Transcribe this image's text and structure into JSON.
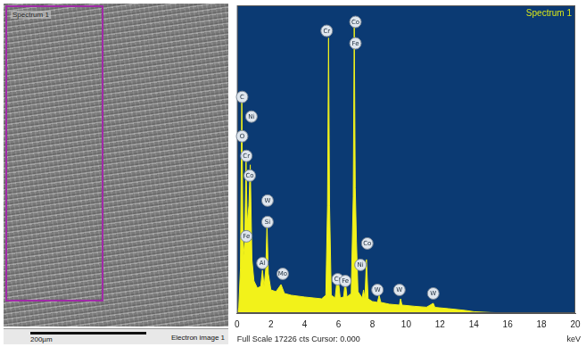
{
  "image": {
    "region_label": "Spectrum 1",
    "scale_bar": "200µm",
    "caption": "Electron image 1"
  },
  "chart_data": {
    "type": "line",
    "title": "Spectrum 1",
    "x_label": "keV",
    "footer": "Full Scale 17226 cts Cursor: 0.000",
    "color": "#f2f21a",
    "grid": false,
    "tick_labels": "x",
    "xlim": [
      0,
      20
    ],
    "xticks": [
      0,
      2,
      4,
      6,
      8,
      10,
      12,
      14,
      16,
      18,
      20
    ],
    "ylim": [
      0,
      17226
    ],
    "x": [
      0,
      0.1,
      0.2,
      0.28,
      0.36,
      0.45,
      0.53,
      0.6,
      0.7,
      0.78,
      0.88,
      1.0,
      1.2,
      1.4,
      1.5,
      1.6,
      1.7,
      1.77,
      1.85,
      2.0,
      2.3,
      2.6,
      2.8,
      3.2,
      3.6,
      4.0,
      4.5,
      5.0,
      5.25,
      5.35,
      5.41,
      5.47,
      5.57,
      5.8,
      5.95,
      6.1,
      6.3,
      6.4,
      6.5,
      6.75,
      6.87,
      6.93,
      6.99,
      7.06,
      7.15,
      7.4,
      7.48,
      7.56,
      7.65,
      7.75,
      8.0,
      8.3,
      8.4,
      8.5,
      9.0,
      9.6,
      9.67,
      9.75,
      10.5,
      11.2,
      11.6,
      11.7,
      12.5,
      13.5,
      14.0,
      15.0,
      16.0,
      18.0,
      20.0
    ],
    "values": [
      0,
      300,
      2500,
      12000,
      3000,
      4000,
      8500,
      5000,
      6000,
      8300,
      3000,
      1800,
      1400,
      1500,
      2400,
      1500,
      2500,
      5000,
      2200,
      1300,
      1200,
      1600,
      1100,
      1000,
      950,
      900,
      850,
      800,
      1000,
      6000,
      15400,
      6000,
      1000,
      850,
      2200,
      850,
      900,
      1800,
      900,
      1100,
      6500,
      16000,
      7000,
      4000,
      1200,
      850,
      1300,
      800,
      3000,
      800,
      650,
      600,
      1000,
      600,
      500,
      450,
      800,
      450,
      380,
      330,
      550,
      320,
      250,
      150,
      80,
      30,
      10,
      0,
      0
    ],
    "annotations": [
      {
        "x": 0.3,
        "y": 12100,
        "label": "C"
      },
      {
        "x": 0.85,
        "y": 11000,
        "label": "Ni"
      },
      {
        "x": 0.3,
        "y": 9900,
        "label": "O"
      },
      {
        "x": 0.55,
        "y": 8800,
        "label": "Cr"
      },
      {
        "x": 0.75,
        "y": 7700,
        "label": "Co"
      },
      {
        "x": 0.55,
        "y": 4300,
        "label": "Fe"
      },
      {
        "x": 1.8,
        "y": 6300,
        "label": "W"
      },
      {
        "x": 1.8,
        "y": 5100,
        "label": "Si"
      },
      {
        "x": 1.5,
        "y": 2800,
        "label": "Al"
      },
      {
        "x": 2.7,
        "y": 2200,
        "label": "Mo"
      },
      {
        "x": 5.3,
        "y": 15800,
        "label": "Cr"
      },
      {
        "x": 7.0,
        "y": 16300,
        "label": "Co"
      },
      {
        "x": 7.0,
        "y": 15100,
        "label": "Fe"
      },
      {
        "x": 7.7,
        "y": 3900,
        "label": "Co"
      },
      {
        "x": 7.3,
        "y": 2700,
        "label": "Ni"
      },
      {
        "x": 5.95,
        "y": 1900,
        "label": "Cr"
      },
      {
        "x": 6.4,
        "y": 1800,
        "label": "Fe"
      },
      {
        "x": 8.3,
        "y": 1300,
        "label": "W"
      },
      {
        "x": 9.6,
        "y": 1300,
        "label": "W"
      },
      {
        "x": 11.6,
        "y": 1100,
        "label": "W"
      }
    ]
  }
}
